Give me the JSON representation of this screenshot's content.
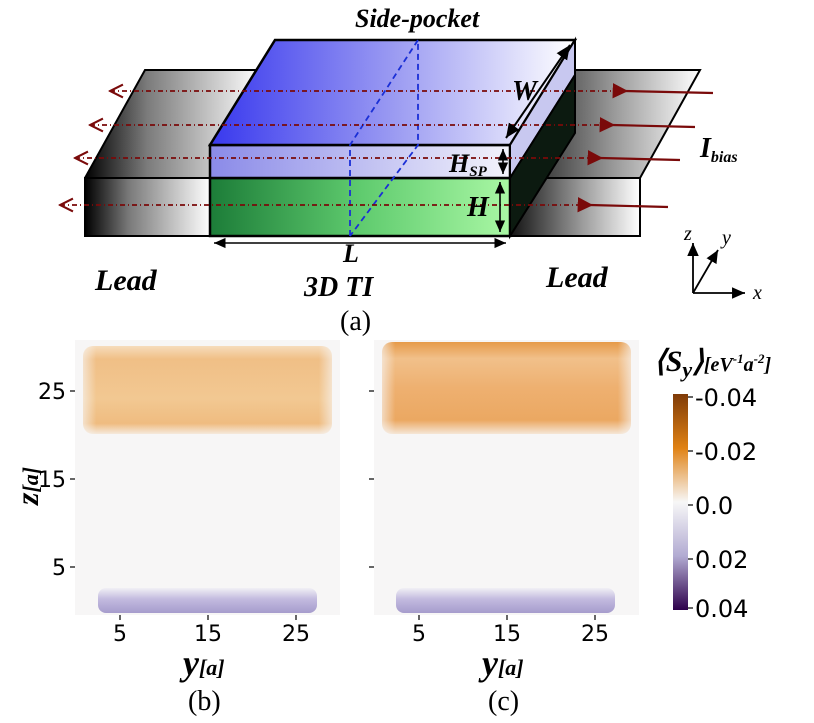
{
  "diagram": {
    "title_side_pocket": "Side-pocket",
    "label_W": "W",
    "label_H_sp_main": "H",
    "label_H_sp_sub": "SP",
    "label_H": "H",
    "label_L": "L",
    "label_ti": "3D TI",
    "label_lead_left": "Lead",
    "label_lead_right": "Lead",
    "label_I_main": "I",
    "label_I_sub": "bias",
    "axis_z": "z",
    "axis_y": "y",
    "axis_x": "x",
    "caption": "(a)",
    "colors": {
      "side_pocket": "#3c3cf0",
      "ti": "#1e8c3c",
      "current_arrow": "#7a0a0a"
    }
  },
  "heatmaps": {
    "panel_b": {
      "caption": "(b)",
      "x_label_main": "y",
      "x_label_unit": "[a]",
      "y_label_main": "z",
      "y_label_unit": "[a]",
      "x_ticks": [
        "5",
        "15",
        "25"
      ],
      "y_ticks": [
        "25",
        "15",
        "5"
      ]
    },
    "panel_c": {
      "caption": "(c)",
      "x_label_main": "y",
      "x_label_unit": "[a]",
      "x_ticks": [
        "5",
        "15",
        "25"
      ]
    },
    "colorbar": {
      "title_main": "⟨S",
      "title_sub": "y",
      "title_close": "⟩",
      "title_unit": "[eV",
      "title_exp1": "-1",
      "title_mid": "a",
      "title_exp2": "-2",
      "title_end": "]",
      "ticks": [
        "-0.04",
        "-0.02",
        "0.0",
        "0.02",
        "0.04"
      ],
      "colors": [
        "#7f3b08",
        "#e08214",
        "#f7f7f7",
        "#b2abd2",
        "#2d004b"
      ]
    }
  },
  "chart_data": [
    {
      "type": "heatmap",
      "panel": "(b)",
      "xlabel": "y[a]",
      "ylabel": "z[a]",
      "xlim": [
        0,
        30
      ],
      "ylim": [
        0,
        30
      ],
      "x_ticks": [
        5,
        15,
        25
      ],
      "y_ticks": [
        5,
        15,
        25
      ],
      "regions": [
        {
          "z_range": [
            20,
            30
          ],
          "value": -0.02
        },
        {
          "z_range": [
            2,
            20
          ],
          "value": 0.0
        },
        {
          "z_range": [
            0,
            2
          ],
          "value": 0.015
        }
      ]
    },
    {
      "type": "heatmap",
      "panel": "(c)",
      "xlabel": "y[a]",
      "xlim": [
        0,
        30
      ],
      "ylim": [
        0,
        30
      ],
      "x_ticks": [
        5,
        15,
        25
      ],
      "regions": [
        {
          "z_range": [
            20,
            30
          ],
          "value": -0.03
        },
        {
          "z_range": [
            2,
            20
          ],
          "value": 0.0
        },
        {
          "z_range": [
            0,
            2
          ],
          "value": 0.015
        }
      ]
    }
  ]
}
